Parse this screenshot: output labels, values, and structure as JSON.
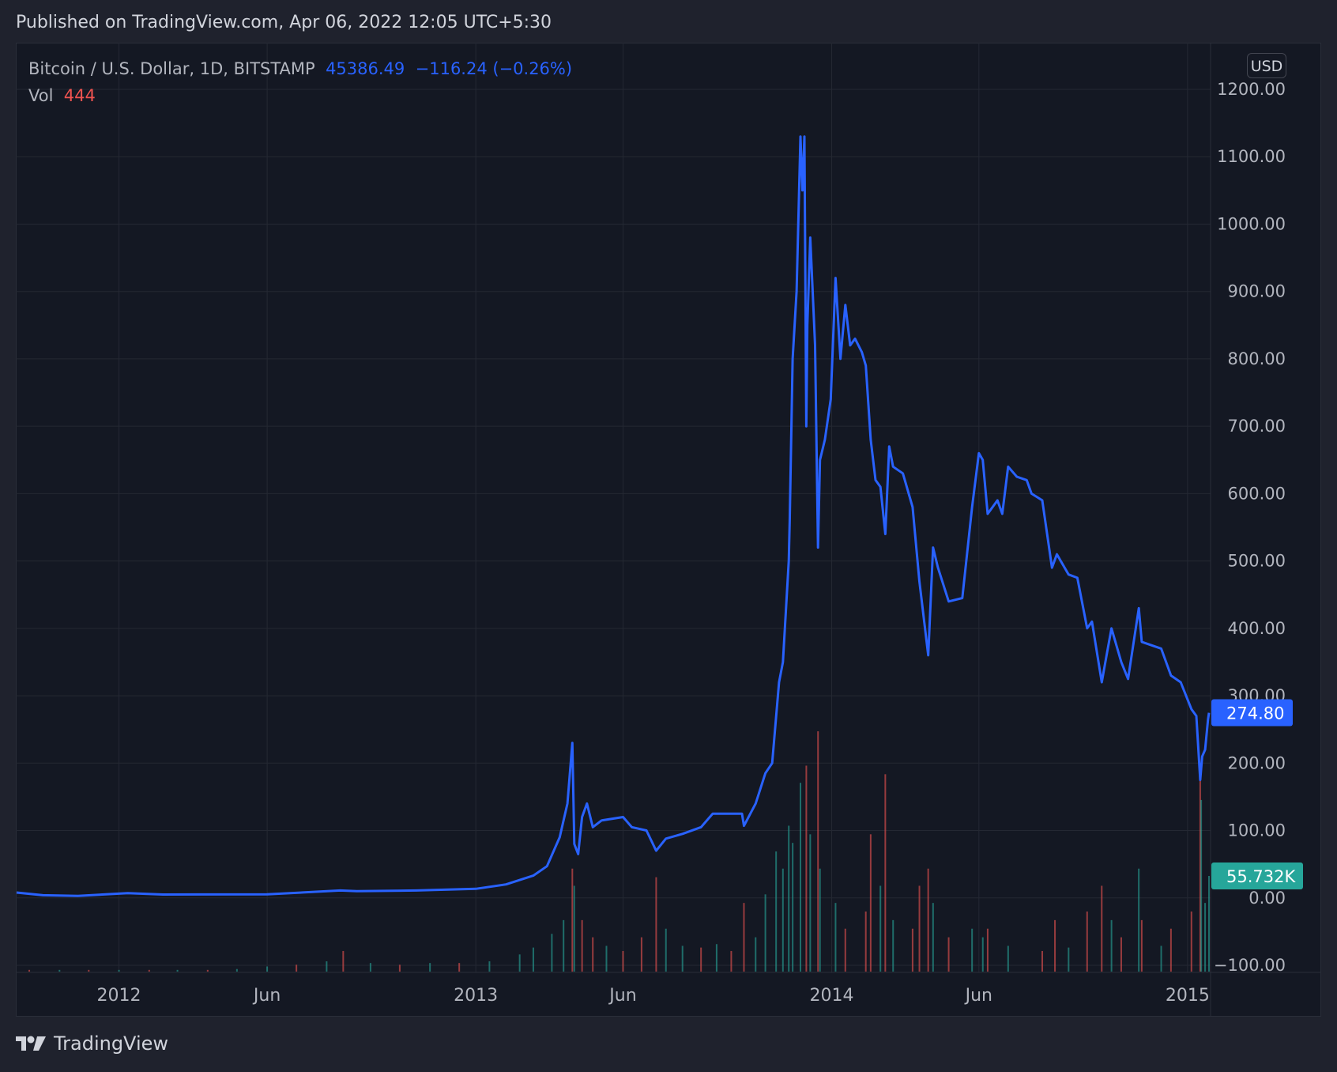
{
  "header": {
    "published": "Published on TradingView.com, Apr 06, 2022 12:05 UTC+5:30"
  },
  "legend": {
    "symbol": "Bitcoin / U.S. Dollar, 1D, BITSTAMP",
    "last": "45386.49",
    "change": "−116.24 (−0.26%)",
    "vol_label": "Vol",
    "vol_value": "444"
  },
  "price_axis": {
    "currency_button": "USD"
  },
  "footer": {
    "brand": "TradingView"
  },
  "colors": {
    "line": "#2962ff",
    "vol_up": "#26a69a",
    "vol_down": "#ef5350",
    "background": "#141823",
    "grid": "#242833"
  },
  "chart_data": {
    "type": "line",
    "title": "Bitcoin / U.S. Dollar, 1D, BITSTAMP",
    "ylim": [
      -100,
      1200
    ],
    "yticks": [
      "1200.00",
      "1100.00",
      "1000.00",
      "900.00",
      "800.00",
      "700.00",
      "600.00",
      "500.00",
      "400.00",
      "300.00",
      "200.00",
      "100.00",
      "0.00",
      "−100.00"
    ],
    "ytick_values": [
      1200,
      1100,
      1000,
      900,
      800,
      700,
      600,
      500,
      400,
      300,
      200,
      100,
      0,
      -100
    ],
    "xticks": [
      {
        "label": "2012",
        "date": "2012-01-01"
      },
      {
        "label": "Jun",
        "date": "2012-06-01"
      },
      {
        "label": "2013",
        "date": "2013-01-01"
      },
      {
        "label": "Jun",
        "date": "2013-06-01"
      },
      {
        "label": "2014",
        "date": "2014-01-01"
      },
      {
        "label": "Jun",
        "date": "2014-06-01"
      },
      {
        "label": "2015",
        "date": "2015-01-01"
      }
    ],
    "xlim": [
      "2011-09-18",
      "2015-01-23"
    ],
    "grid": true,
    "last_price_label": "274.80",
    "last_price": 274.8,
    "volume_label": "55.732K",
    "volume_last_k": 55.732,
    "price": [
      [
        "2011-09-18",
        8
      ],
      [
        "2011-10-15",
        4
      ],
      [
        "2011-11-20",
        3
      ],
      [
        "2012-01-10",
        7
      ],
      [
        "2012-02-15",
        5
      ],
      [
        "2012-06-01",
        5.3
      ],
      [
        "2012-08-15",
        11
      ],
      [
        "2012-09-01",
        10
      ],
      [
        "2012-11-01",
        11
      ],
      [
        "2013-01-01",
        13.5
      ],
      [
        "2013-02-01",
        20
      ],
      [
        "2013-03-01",
        33
      ],
      [
        "2013-03-15",
        47
      ],
      [
        "2013-03-28",
        90
      ],
      [
        "2013-04-05",
        140
      ],
      [
        "2013-04-10",
        230
      ],
      [
        "2013-04-12",
        80
      ],
      [
        "2013-04-16",
        65
      ],
      [
        "2013-04-20",
        120
      ],
      [
        "2013-04-25",
        140
      ],
      [
        "2013-05-01",
        105
      ],
      [
        "2013-05-10",
        115
      ],
      [
        "2013-06-01",
        120
      ],
      [
        "2013-06-10",
        105
      ],
      [
        "2013-06-25",
        100
      ],
      [
        "2013-07-05",
        70
      ],
      [
        "2013-07-15",
        88
      ],
      [
        "2013-08-01",
        95
      ],
      [
        "2013-08-20",
        105
      ],
      [
        "2013-09-01",
        125
      ],
      [
        "2013-09-15",
        125
      ],
      [
        "2013-10-01",
        125
      ],
      [
        "2013-10-03",
        107
      ],
      [
        "2013-10-15",
        140
      ],
      [
        "2013-10-25",
        185
      ],
      [
        "2013-11-01",
        200
      ],
      [
        "2013-11-08",
        320
      ],
      [
        "2013-11-12",
        350
      ],
      [
        "2013-11-18",
        500
      ],
      [
        "2013-11-19",
        560
      ],
      [
        "2013-11-22",
        800
      ],
      [
        "2013-11-26",
        900
      ],
      [
        "2013-11-30",
        1130
      ],
      [
        "2013-12-02",
        1050
      ],
      [
        "2013-12-04",
        1130
      ],
      [
        "2013-12-06",
        700
      ],
      [
        "2013-12-07",
        850
      ],
      [
        "2013-12-10",
        980
      ],
      [
        "2013-12-15",
        820
      ],
      [
        "2013-12-18",
        520
      ],
      [
        "2013-12-20",
        650
      ],
      [
        "2013-12-25",
        680
      ],
      [
        "2013-12-31",
        740
      ],
      [
        "2014-01-05",
        920
      ],
      [
        "2014-01-10",
        800
      ],
      [
        "2014-01-15",
        880
      ],
      [
        "2014-01-20",
        820
      ],
      [
        "2014-01-25",
        830
      ],
      [
        "2014-02-01",
        810
      ],
      [
        "2014-02-05",
        790
      ],
      [
        "2014-02-10",
        680
      ],
      [
        "2014-02-15",
        620
      ],
      [
        "2014-02-20",
        610
      ],
      [
        "2014-02-25",
        540
      ],
      [
        "2014-03-01",
        670
      ],
      [
        "2014-03-05",
        640
      ],
      [
        "2014-03-15",
        630
      ],
      [
        "2014-03-25",
        580
      ],
      [
        "2014-04-01",
        470
      ],
      [
        "2014-04-10",
        360
      ],
      [
        "2014-04-15",
        520
      ],
      [
        "2014-04-20",
        490
      ],
      [
        "2014-05-01",
        440
      ],
      [
        "2014-05-15",
        445
      ],
      [
        "2014-05-25",
        580
      ],
      [
        "2014-06-01",
        660
      ],
      [
        "2014-06-05",
        650
      ],
      [
        "2014-06-10",
        570
      ],
      [
        "2014-06-20",
        590
      ],
      [
        "2014-06-25",
        570
      ],
      [
        "2014-07-01",
        640
      ],
      [
        "2014-07-10",
        625
      ],
      [
        "2014-07-20",
        620
      ],
      [
        "2014-07-25",
        600
      ],
      [
        "2014-08-05",
        590
      ],
      [
        "2014-08-15",
        490
      ],
      [
        "2014-08-20",
        510
      ],
      [
        "2014-09-01",
        480
      ],
      [
        "2014-09-10",
        475
      ],
      [
        "2014-09-20",
        400
      ],
      [
        "2014-09-25",
        410
      ],
      [
        "2014-10-05",
        320
      ],
      [
        "2014-10-10",
        360
      ],
      [
        "2014-10-15",
        400
      ],
      [
        "2014-10-25",
        350
      ],
      [
        "2014-11-01",
        325
      ],
      [
        "2014-11-12",
        430
      ],
      [
        "2014-11-15",
        380
      ],
      [
        "2014-11-25",
        375
      ],
      [
        "2014-12-05",
        370
      ],
      [
        "2014-12-15",
        330
      ],
      [
        "2014-12-25",
        320
      ],
      [
        "2015-01-05",
        280
      ],
      [
        "2015-01-10",
        270
      ],
      [
        "2015-01-14",
        175
      ],
      [
        "2015-01-16",
        210
      ],
      [
        "2015-01-19",
        220
      ],
      [
        "2015-01-22",
        265
      ],
      [
        "2015-01-23",
        274.8
      ]
    ],
    "volume_k": [
      [
        "2011-10-01",
        1,
        "d"
      ],
      [
        "2011-11-01",
        1,
        "u"
      ],
      [
        "2011-12-01",
        1,
        "d"
      ],
      [
        "2012-01-01",
        1,
        "u"
      ],
      [
        "2012-02-01",
        1,
        "d"
      ],
      [
        "2012-03-01",
        1,
        "u"
      ],
      [
        "2012-04-01",
        1,
        "d"
      ],
      [
        "2012-05-01",
        1.5,
        "u"
      ],
      [
        "2012-06-01",
        3,
        "u"
      ],
      [
        "2012-07-01",
        4,
        "d"
      ],
      [
        "2012-08-01",
        6,
        "u"
      ],
      [
        "2012-08-18",
        12,
        "d"
      ],
      [
        "2012-09-15",
        5,
        "u"
      ],
      [
        "2012-10-15",
        4,
        "d"
      ],
      [
        "2012-11-15",
        5,
        "u"
      ],
      [
        "2012-12-15",
        5,
        "d"
      ],
      [
        "2013-01-15",
        6,
        "u"
      ],
      [
        "2013-02-15",
        10,
        "u"
      ],
      [
        "2013-03-01",
        14,
        "u"
      ],
      [
        "2013-03-20",
        22,
        "u"
      ],
      [
        "2013-04-01",
        30,
        "u"
      ],
      [
        "2013-04-10",
        60,
        "d"
      ],
      [
        "2013-04-12",
        50,
        "u"
      ],
      [
        "2013-04-20",
        30,
        "d"
      ],
      [
        "2013-05-01",
        20,
        "d"
      ],
      [
        "2013-05-15",
        15,
        "u"
      ],
      [
        "2013-06-01",
        12,
        "d"
      ],
      [
        "2013-06-20",
        20,
        "d"
      ],
      [
        "2013-07-05",
        55,
        "d"
      ],
      [
        "2013-07-15",
        25,
        "u"
      ],
      [
        "2013-08-01",
        15,
        "u"
      ],
      [
        "2013-08-20",
        14,
        "d"
      ],
      [
        "2013-09-05",
        16,
        "u"
      ],
      [
        "2013-09-20",
        12,
        "d"
      ],
      [
        "2013-10-03",
        40,
        "d"
      ],
      [
        "2013-10-15",
        20,
        "u"
      ],
      [
        "2013-10-25",
        45,
        "u"
      ],
      [
        "2013-11-05",
        70,
        "u"
      ],
      [
        "2013-11-12",
        60,
        "u"
      ],
      [
        "2013-11-18",
        85,
        "u"
      ],
      [
        "2013-11-22",
        75,
        "u"
      ],
      [
        "2013-11-30",
        110,
        "u"
      ],
      [
        "2013-12-06",
        120,
        "d"
      ],
      [
        "2013-12-10",
        80,
        "u"
      ],
      [
        "2013-12-18",
        140,
        "d"
      ],
      [
        "2013-12-20",
        60,
        "u"
      ],
      [
        "2014-01-05",
        40,
        "u"
      ],
      [
        "2014-01-15",
        25,
        "d"
      ],
      [
        "2014-02-05",
        35,
        "d"
      ],
      [
        "2014-02-10",
        80,
        "d"
      ],
      [
        "2014-02-20",
        50,
        "u"
      ],
      [
        "2014-02-25",
        115,
        "d"
      ],
      [
        "2014-03-05",
        30,
        "u"
      ],
      [
        "2014-03-25",
        25,
        "d"
      ],
      [
        "2014-04-01",
        50,
        "d"
      ],
      [
        "2014-04-10",
        60,
        "d"
      ],
      [
        "2014-04-15",
        40,
        "u"
      ],
      [
        "2014-05-01",
        20,
        "d"
      ],
      [
        "2014-05-25",
        25,
        "u"
      ],
      [
        "2014-06-05",
        20,
        "u"
      ],
      [
        "2014-06-10",
        25,
        "d"
      ],
      [
        "2014-07-01",
        15,
        "u"
      ],
      [
        "2014-08-05",
        12,
        "d"
      ],
      [
        "2014-08-18",
        30,
        "d"
      ],
      [
        "2014-09-01",
        14,
        "u"
      ],
      [
        "2014-09-20",
        35,
        "d"
      ],
      [
        "2014-10-05",
        50,
        "d"
      ],
      [
        "2014-10-15",
        30,
        "u"
      ],
      [
        "2014-10-25",
        20,
        "d"
      ],
      [
        "2014-11-12",
        60,
        "u"
      ],
      [
        "2014-11-15",
        30,
        "d"
      ],
      [
        "2014-12-05",
        15,
        "u"
      ],
      [
        "2014-12-15",
        25,
        "d"
      ],
      [
        "2015-01-05",
        35,
        "d"
      ],
      [
        "2015-01-14",
        120,
        "d"
      ],
      [
        "2015-01-15",
        100,
        "u"
      ],
      [
        "2015-01-19",
        40,
        "u"
      ],
      [
        "2015-01-23",
        55.732,
        "u"
      ]
    ]
  }
}
